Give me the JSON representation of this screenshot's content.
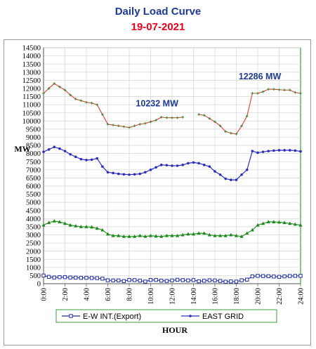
{
  "header": {
    "title": "Daily Load Curve",
    "date": "19-07-2021"
  },
  "colors": {
    "title": "#1f3a93",
    "date": "#e8001c",
    "east_grid": "#2d2dbd",
    "ew_int": "#1f2fa0",
    "green_band": "#1c8a1c",
    "total_line": "#e53b3b",
    "total_marker": "#2f8f2f",
    "annotation": "#1f3a93",
    "frame_green": "#3c9e3c"
  },
  "chart_data": {
    "type": "line",
    "xlabel": "HOUR",
    "ylabel": "MW",
    "ylim": [
      0,
      14500
    ],
    "yticks": [
      0,
      500,
      1000,
      1500,
      2000,
      2500,
      3000,
      3500,
      4000,
      4500,
      5000,
      5500,
      6000,
      6500,
      7000,
      7500,
      8000,
      8500,
      9000,
      9500,
      10000,
      10500,
      11000,
      11500,
      12000,
      12500,
      13000,
      13500,
      14000,
      14500
    ],
    "xlim": [
      0,
      24
    ],
    "xticks": [
      "0:00",
      "2:00",
      "4:00",
      "6:00",
      "8:00",
      "10:00",
      "12:00",
      "14:00",
      "16:00",
      "18:00",
      "20:00",
      "22:00",
      "24:00"
    ],
    "grid": true,
    "legend_position": "bottom",
    "series": [
      {
        "name": "E-W INT.(Export)",
        "marker": "square-open",
        "x": [
          0,
          0.5,
          1,
          1.5,
          2,
          2.5,
          3,
          3.5,
          4,
          4.5,
          5,
          5.5,
          6,
          6.5,
          7,
          7.5,
          8,
          8.5,
          9,
          9.5,
          10,
          10.5,
          11,
          11.5,
          12,
          12.5,
          13,
          13.5,
          14,
          14.5,
          15,
          15.5,
          16,
          16.5,
          17,
          17.5,
          18,
          18.5,
          19,
          19.5,
          20,
          20.5,
          21,
          21.5,
          22,
          22.5,
          23,
          23.5,
          24
        ],
        "values": [
          500,
          420,
          380,
          400,
          400,
          380,
          370,
          360,
          360,
          350,
          340,
          310,
          210,
          200,
          200,
          160,
          230,
          220,
          190,
          130,
          230,
          230,
          190,
          170,
          200,
          240,
          220,
          200,
          220,
          150,
          180,
          210,
          200,
          170,
          120,
          140,
          130,
          210,
          250,
          450,
          480,
          470,
          460,
          440,
          420,
          450,
          470,
          480,
          480
        ]
      },
      {
        "name": "EAST GRID",
        "marker": "dot",
        "x": [
          0,
          0.5,
          1,
          1.5,
          2,
          2.5,
          3,
          3.5,
          4,
          4.5,
          5,
          5.5,
          6,
          6.5,
          7,
          7.5,
          8,
          8.5,
          9,
          9.5,
          10,
          10.5,
          11,
          11.5,
          12,
          12.5,
          13,
          13.5,
          14,
          14.5,
          15,
          15.5,
          16,
          16.5,
          17,
          17.5,
          18,
          18.5,
          19,
          19.5,
          20,
          20.5,
          21,
          21.5,
          22,
          22.5,
          23,
          23.5,
          24
        ],
        "values": [
          8100,
          8250,
          8400,
          8300,
          8150,
          7950,
          7800,
          7650,
          7600,
          7620,
          7700,
          7200,
          6850,
          6800,
          6750,
          6720,
          6700,
          6720,
          6750,
          6850,
          7000,
          7150,
          7300,
          7280,
          7250,
          7250,
          7300,
          7400,
          7450,
          7400,
          7300,
          7200,
          6900,
          6700,
          6450,
          6380,
          6380,
          6700,
          7000,
          8150,
          8050,
          8100,
          8150,
          8180,
          8200,
          8200,
          8200,
          8180,
          8130
        ]
      },
      {
        "name": "",
        "marker": "triangle",
        "x": [
          0,
          0.5,
          1,
          1.5,
          2,
          2.5,
          3,
          3.5,
          4,
          4.5,
          5,
          5.5,
          6,
          6.5,
          7,
          7.5,
          8,
          8.5,
          9,
          9.5,
          10,
          10.5,
          11,
          11.5,
          12,
          12.5,
          13,
          13.5,
          14,
          14.5,
          15,
          15.5,
          16,
          16.5,
          17,
          17.5,
          18,
          18.5,
          19,
          19.5,
          20,
          20.5,
          21,
          21.5,
          22,
          22.5,
          23,
          23.5,
          24
        ],
        "values": [
          3600,
          3750,
          3850,
          3800,
          3700,
          3600,
          3550,
          3500,
          3500,
          3480,
          3400,
          3300,
          3050,
          2950,
          2950,
          2900,
          2900,
          2900,
          2950,
          2900,
          2950,
          2920,
          2900,
          2950,
          2950,
          2950,
          3000,
          3050,
          3050,
          3100,
          3100,
          3000,
          2950,
          2950,
          2950,
          3000,
          2950,
          2900,
          3100,
          3300,
          3600,
          3700,
          3800,
          3800,
          3780,
          3750,
          3700,
          3650,
          3600
        ]
      },
      {
        "name": "",
        "marker": "cross",
        "x": [
          0,
          0.5,
          1,
          1.5,
          2,
          2.5,
          3,
          3.5,
          4,
          4.5,
          5,
          5.5,
          6,
          6.5,
          7,
          7.5,
          8,
          8.5,
          9,
          9.5,
          10,
          10.5,
          11,
          11.5,
          12,
          12.5,
          13,
          13.5,
          14,
          14.5,
          15,
          15.5,
          16,
          16.5,
          17,
          17.5,
          18,
          18.5,
          19,
          19.5,
          20,
          20.5,
          21,
          21.5,
          22,
          22.5,
          23,
          23.5,
          24
        ],
        "values": [
          11700,
          12000,
          12300,
          12100,
          11900,
          11600,
          11350,
          11250,
          11150,
          11100,
          11000,
          10400,
          9800,
          9750,
          9700,
          9650,
          9600,
          9700,
          9800,
          9850,
          9950,
          10050,
          10232,
          10200,
          10200,
          10200,
          10232,
          null,
          null,
          10400,
          10350,
          10150,
          9950,
          9700,
          9350,
          9250,
          9200,
          9700,
          10300,
          11700,
          11700,
          11800,
          11950,
          11950,
          11920,
          11900,
          11900,
          11750,
          11700
        ]
      }
    ],
    "annotations": [
      {
        "text": "10232 MW",
        "x": 10.6,
        "y": 10900
      },
      {
        "text": "12286 MW",
        "x": 20.2,
        "y": 12550
      }
    ]
  }
}
